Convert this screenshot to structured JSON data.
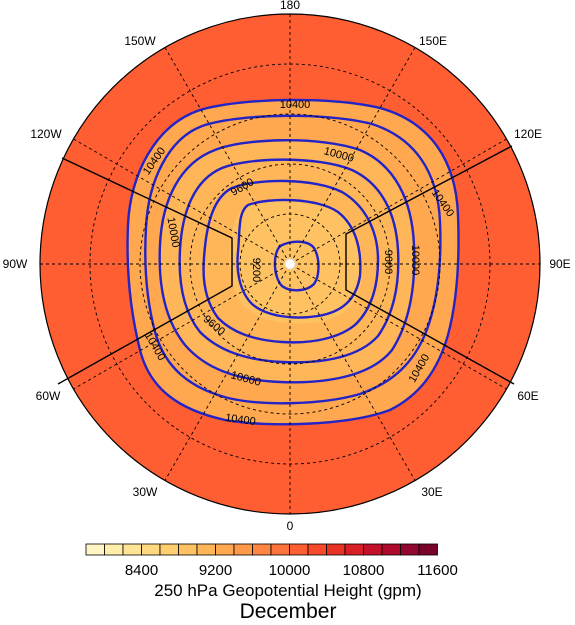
{
  "map": {
    "title": "250 hPa Geopotential Height (gpm)",
    "subtitle": "December",
    "projection": "polar stereographic, south pole centered",
    "longitude_labels": [
      {
        "text": "180",
        "lon": 180
      },
      {
        "text": "150W",
        "lon": -150
      },
      {
        "text": "150E",
        "lon": 150
      },
      {
        "text": "120W",
        "lon": -120
      },
      {
        "text": "120E",
        "lon": 120
      },
      {
        "text": "90W",
        "lon": -90
      },
      {
        "text": "90E",
        "lon": 90
      },
      {
        "text": "60W",
        "lon": -60
      },
      {
        "text": "60E",
        "lon": 60
      },
      {
        "text": "30W",
        "lon": -30
      },
      {
        "text": "30E",
        "lon": 30
      },
      {
        "text": "0",
        "lon": 0
      }
    ],
    "contour_labels": [
      {
        "text": "10400",
        "lon": 180
      },
      {
        "text": "10400",
        "lon": -130
      },
      {
        "text": "10400",
        "lon": 125
      },
      {
        "text": "10000",
        "lon": -100
      },
      {
        "text": "10000",
        "lon": 165
      },
      {
        "text": "10000",
        "lon": 85
      },
      {
        "text": "9600",
        "lon": -125
      },
      {
        "text": "9600",
        "lon": 85
      },
      {
        "text": "9200",
        "lon": -95
      },
      {
        "text": "9600",
        "lon": -45
      },
      {
        "text": "10400",
        "lon": -65
      },
      {
        "text": "10000",
        "lon": -15
      },
      {
        "text": "10400",
        "lon": 10
      },
      {
        "text": "10400",
        "lon": 60
      }
    ],
    "colorbar": {
      "colors": [
        "#fff5c4",
        "#ffedaa",
        "#ffe496",
        "#ffd980",
        "#ffce6e",
        "#ffc262",
        "#ffb658",
        "#ffa84f",
        "#ff9848",
        "#ff8642",
        "#ff733c",
        "#ff5e33",
        "#f8492b",
        "#e83226",
        "#d91f26",
        "#c4112b",
        "#ae0a2e",
        "#93062f",
        "#780529"
      ],
      "tick_labels": [
        "8400",
        "9200",
        "10000",
        "10800",
        "11600"
      ]
    },
    "colors": {
      "contour_line": "#2323c6",
      "outer_fill": "#ff5e33",
      "ring_fill": "#ffa84f",
      "inner_fill": "#ffb658",
      "center_fill": "#ffc262",
      "grid_line": "#000000"
    }
  }
}
